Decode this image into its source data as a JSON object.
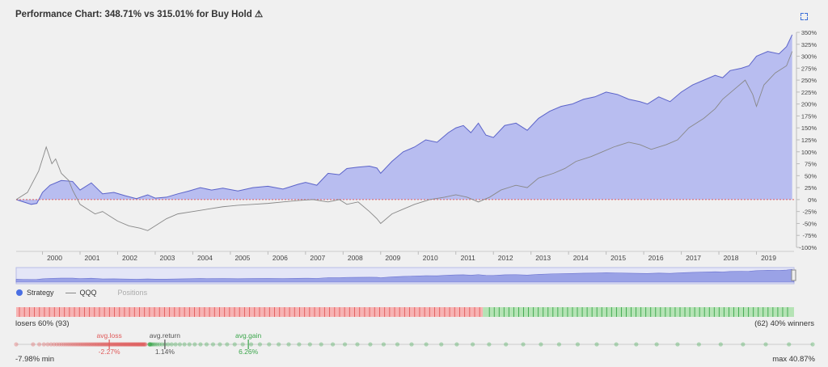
{
  "title": "Performance Chart: 348.71% vs 315.01% for Buy Hold ⚠",
  "legend": {
    "strategy": "Strategy",
    "benchmark": "QQQ",
    "positions": "Positions"
  },
  "colors": {
    "strategy_fill": "#b8bdf0",
    "strategy_line": "#5b63c9",
    "benchmark_line": "#888888",
    "losers": "#f7b3b3",
    "losers_tick": "#e05a5a",
    "winners": "#b5e3b5",
    "winners_tick": "#3aa54a",
    "accent": "#3c6fd8"
  },
  "trades": {
    "losers_label": "losers 60% (93)",
    "winners_label": "(62) 40% winners",
    "losers_count": 93,
    "winners_count": 62
  },
  "distribution": {
    "avg_loss_label": "avg.loss",
    "avg_loss_value": "-2.27%",
    "avg_return_label": "avg.return",
    "avg_return_value": "1.14%",
    "avg_gain_label": "avg.gain",
    "avg_gain_value": "6.26%",
    "min_label": "-7.98% min",
    "max_label": "max 40.87%",
    "min": -7.98,
    "max": 40.87,
    "avg_loss": -2.27,
    "avg_return": 1.14,
    "avg_gain": 6.26
  },
  "chart_data": {
    "type": "area",
    "title": "Performance Chart: 348.71% vs 315.01% for Buy Hold",
    "xlabel": "",
    "ylabel": "",
    "x_ticks": [
      "2000",
      "2001",
      "2002",
      "2003",
      "2004",
      "2005",
      "2006",
      "2007",
      "2008",
      "2009",
      "2010",
      "2011",
      "2012",
      "2013",
      "2014",
      "2015",
      "2016",
      "2017",
      "2018",
      "2019"
    ],
    "y_ticks": [
      "350%",
      "325%",
      "300%",
      "275%",
      "250%",
      "225%",
      "200%",
      "175%",
      "150%",
      "125%",
      "100%",
      "75%",
      "50%",
      "25%",
      "0%",
      "-25%",
      "-50%",
      "-75%",
      "-100%"
    ],
    "ylim": [
      -100,
      350
    ],
    "xlim": [
      1999.3,
      2020.0
    ],
    "grid": false,
    "legend_position": "bottom-left",
    "series": [
      {
        "name": "Strategy",
        "x": [
          1999.3,
          1999.5,
          1999.7,
          1999.85,
          2000.0,
          2000.2,
          2000.5,
          2000.8,
          2001.0,
          2001.3,
          2001.6,
          2001.9,
          2002.2,
          2002.5,
          2002.8,
          2003.0,
          2003.3,
          2003.6,
          2003.9,
          2004.2,
          2004.5,
          2004.8,
          2005.2,
          2005.6,
          2006.0,
          2006.4,
          2006.8,
          2007.0,
          2007.3,
          2007.6,
          2007.9,
          2008.1,
          2008.4,
          2008.7,
          2008.9,
          2009.0,
          2009.3,
          2009.6,
          2009.9,
          2010.2,
          2010.5,
          2010.8,
          2011.0,
          2011.2,
          2011.4,
          2011.6,
          2011.8,
          2012.0,
          2012.3,
          2012.6,
          2012.9,
          2013.2,
          2013.5,
          2013.8,
          2014.1,
          2014.4,
          2014.7,
          2015.0,
          2015.3,
          2015.6,
          2015.9,
          2016.1,
          2016.4,
          2016.7,
          2017.0,
          2017.3,
          2017.6,
          2017.9,
          2018.1,
          2018.3,
          2018.6,
          2018.8,
          2019.0,
          2019.3,
          2019.6,
          2019.8,
          2019.95
        ],
        "values": [
          0,
          -5,
          -10,
          -8,
          15,
          30,
          40,
          38,
          20,
          35,
          12,
          15,
          8,
          2,
          10,
          3,
          5,
          12,
          18,
          25,
          20,
          24,
          18,
          25,
          28,
          22,
          32,
          36,
          30,
          55,
          52,
          65,
          68,
          70,
          66,
          55,
          80,
          100,
          110,
          125,
          120,
          140,
          150,
          155,
          140,
          160,
          135,
          130,
          155,
          160,
          145,
          170,
          185,
          195,
          200,
          210,
          215,
          225,
          220,
          210,
          205,
          200,
          215,
          205,
          225,
          240,
          250,
          260,
          255,
          270,
          275,
          280,
          300,
          310,
          305,
          320,
          345
        ]
      },
      {
        "name": "QQQ",
        "x": [
          1999.3,
          1999.6,
          1999.9,
          2000.1,
          2000.25,
          2000.35,
          2000.5,
          2000.7,
          2000.8,
          2001.0,
          2001.2,
          2001.4,
          2001.6,
          2001.8,
          2002.0,
          2002.3,
          2002.6,
          2002.8,
          2003.0,
          2003.3,
          2003.6,
          2004.0,
          2004.4,
          2004.8,
          2005.2,
          2005.6,
          2006.0,
          2006.4,
          2006.8,
          2007.2,
          2007.6,
          2007.9,
          2008.1,
          2008.4,
          2008.7,
          2008.9,
          2009.0,
          2009.3,
          2009.6,
          2009.9,
          2010.3,
          2010.7,
          2011.0,
          2011.3,
          2011.6,
          2011.9,
          2012.2,
          2012.6,
          2012.9,
          2013.2,
          2013.6,
          2013.9,
          2014.2,
          2014.6,
          2014.9,
          2015.2,
          2015.6,
          2015.9,
          2016.2,
          2016.6,
          2016.9,
          2017.2,
          2017.6,
          2017.9,
          2018.1,
          2018.4,
          2018.7,
          2018.9,
          2019.0,
          2019.2,
          2019.5,
          2019.8,
          2019.95
        ],
        "values": [
          0,
          15,
          60,
          110,
          75,
          85,
          55,
          40,
          20,
          -10,
          -20,
          -30,
          -25,
          -35,
          -45,
          -55,
          -60,
          -65,
          -55,
          -40,
          -30,
          -25,
          -20,
          -15,
          -12,
          -10,
          -8,
          -5,
          -2,
          0,
          -5,
          0,
          -10,
          -5,
          -25,
          -40,
          -50,
          -30,
          -20,
          -10,
          0,
          5,
          10,
          5,
          -5,
          5,
          20,
          30,
          25,
          45,
          55,
          65,
          80,
          90,
          100,
          110,
          120,
          115,
          105,
          115,
          125,
          150,
          170,
          190,
          210,
          230,
          250,
          220,
          195,
          240,
          265,
          280,
          310
        ]
      }
    ]
  }
}
